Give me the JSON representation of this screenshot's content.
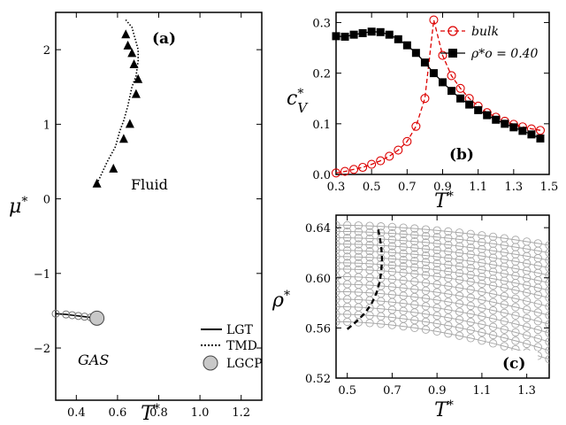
{
  "chart_data": [
    {
      "id": "a",
      "type": "line",
      "panel_label": "(a)",
      "xlabel": "T*",
      "ylabel": "μ*",
      "xlim": [
        0.3,
        1.3
      ],
      "ylim": [
        -2.7,
        2.5
      ],
      "xticks": [
        0.4,
        0.6,
        0.8,
        1.0,
        1.2
      ],
      "xtick_labels": [
        "0.4",
        "0.6",
        "0.8",
        "1.0",
        "1.2"
      ],
      "yticks": [
        -2,
        -1,
        0,
        1,
        2
      ],
      "ytick_labels": [
        "−2",
        "−1",
        "0",
        "1",
        "2"
      ],
      "annotations": {
        "fluid": "Fluid",
        "gas": "GAS"
      },
      "legend": {
        "position": "lower-right",
        "entries": [
          "LGT",
          "TMD",
          "LGCP"
        ]
      },
      "series": [
        {
          "name": "LGT",
          "style": "solid-line-open-circles",
          "x": [
            0.3,
            0.35,
            0.38,
            0.41,
            0.44,
            0.47,
            0.5
          ],
          "y": [
            -1.54,
            -1.55,
            -1.56,
            -1.57,
            -1.58,
            -1.59,
            -1.6
          ]
        },
        {
          "name": "TMD",
          "style": "dotted-line-triangles",
          "x": [
            0.5,
            0.55,
            0.59,
            0.61,
            0.63,
            0.65,
            0.67,
            0.69,
            0.7,
            0.7,
            0.69,
            0.68,
            0.67,
            0.64
          ],
          "y": [
            0.2,
            0.5,
            0.7,
            0.9,
            1.05,
            1.25,
            1.5,
            1.65,
            1.85,
            2.0,
            2.1,
            2.2,
            2.3,
            2.4
          ]
        },
        {
          "name": "TMD-markers",
          "x": [
            0.5,
            0.58,
            0.63,
            0.66,
            0.69,
            0.7,
            0.68,
            0.67,
            0.65,
            0.64
          ],
          "y": [
            0.2,
            0.4,
            0.8,
            1.0,
            1.4,
            1.6,
            1.8,
            1.95,
            2.05,
            2.2
          ]
        },
        {
          "name": "LGCP",
          "x": [
            0.5
          ],
          "y": [
            -1.6
          ]
        }
      ]
    },
    {
      "id": "b",
      "type": "line",
      "panel_label": "(b)",
      "xlabel": "T*",
      "ylabel": "c*V",
      "xlim": [
        0.3,
        1.5
      ],
      "ylim": [
        0.0,
        0.32
      ],
      "xticks": [
        0.3,
        0.5,
        0.7,
        0.9,
        1.1,
        1.3,
        1.5
      ],
      "xtick_labels": [
        "0.3",
        "0.5",
        "0.7",
        "0.9",
        "1.1",
        "1.3",
        "1.5"
      ],
      "yticks": [
        0.0,
        0.1,
        0.2,
        0.3
      ],
      "ytick_labels": [
        "0.0",
        "0.1",
        "0.2",
        "0.3"
      ],
      "legend": {
        "position": "top-right",
        "entries": [
          "bulk",
          "ρ*o = 0.40"
        ]
      },
      "series": [
        {
          "name": "bulk",
          "color": "#dd0000",
          "style": "dashed-open-circles",
          "x": [
            0.3,
            0.35,
            0.4,
            0.45,
            0.5,
            0.55,
            0.6,
            0.65,
            0.7,
            0.75,
            0.8,
            0.85,
            0.9,
            0.95,
            1.0,
            1.05,
            1.1,
            1.15,
            1.2,
            1.25,
            1.3,
            1.35,
            1.4,
            1.45
          ],
          "y": [
            0.003,
            0.006,
            0.01,
            0.014,
            0.02,
            0.027,
            0.036,
            0.048,
            0.065,
            0.095,
            0.15,
            0.305,
            0.235,
            0.195,
            0.17,
            0.15,
            0.135,
            0.122,
            0.113,
            0.105,
            0.099,
            0.094,
            0.09,
            0.087
          ]
        },
        {
          "name": "ρ*o = 0.40",
          "color": "#000000",
          "style": "solid-filled-squares",
          "x": [
            0.3,
            0.35,
            0.4,
            0.45,
            0.5,
            0.55,
            0.6,
            0.65,
            0.7,
            0.75,
            0.8,
            0.85,
            0.9,
            0.95,
            1.0,
            1.05,
            1.1,
            1.15,
            1.2,
            1.25,
            1.3,
            1.35,
            1.4,
            1.45
          ],
          "y": [
            0.273,
            0.272,
            0.276,
            0.279,
            0.282,
            0.281,
            0.276,
            0.267,
            0.255,
            0.24,
            0.221,
            0.2,
            0.182,
            0.165,
            0.15,
            0.138,
            0.127,
            0.117,
            0.108,
            0.1,
            0.093,
            0.086,
            0.079,
            0.071
          ]
        }
      ]
    },
    {
      "id": "c",
      "type": "line",
      "panel_label": "(c)",
      "xlabel": "T*",
      "ylabel": "ρ*",
      "xlim": [
        0.45,
        1.4
      ],
      "ylim": [
        0.52,
        0.65
      ],
      "xticks": [
        0.5,
        0.7,
        0.9,
        1.1,
        1.3
      ],
      "xtick_labels": [
        "0.5",
        "0.7",
        "0.9",
        "1.1",
        "1.3"
      ],
      "yticks": [
        0.52,
        0.56,
        0.6,
        0.64
      ],
      "ytick_labels": [
        "0.52",
        "0.56",
        "0.60",
        "0.64"
      ],
      "isochore_x": [
        0.45,
        0.5,
        0.55,
        0.6,
        0.65,
        0.7,
        0.75,
        0.8,
        0.85,
        0.9,
        0.95,
        1.0,
        1.05,
        1.1,
        1.15,
        1.2,
        1.25,
        1.3,
        1.35,
        1.4
      ],
      "isochores": [
        {
          "rho0": 0.642,
          "drop": 0.016
        },
        {
          "rho0": 0.637,
          "drop": 0.017
        },
        {
          "rho0": 0.632,
          "drop": 0.018
        },
        {
          "rho0": 0.627,
          "drop": 0.019
        },
        {
          "rho0": 0.622,
          "drop": 0.02
        },
        {
          "rho0": 0.617,
          "drop": 0.021
        },
        {
          "rho0": 0.612,
          "drop": 0.022
        },
        {
          "rho0": 0.607,
          "drop": 0.023
        },
        {
          "rho0": 0.601,
          "drop": 0.024
        },
        {
          "rho0": 0.595,
          "drop": 0.025
        },
        {
          "rho0": 0.589,
          "drop": 0.026
        },
        {
          "rho0": 0.583,
          "drop": 0.027
        },
        {
          "rho0": 0.577,
          "drop": 0.028
        },
        {
          "rho0": 0.571,
          "drop": 0.029
        },
        {
          "rho0": 0.565,
          "drop": 0.03
        }
      ],
      "tmd_curve": {
        "style": "dashed-black",
        "x": [
          0.5,
          0.54,
          0.58,
          0.61,
          0.63,
          0.645,
          0.652,
          0.655,
          0.652,
          0.645,
          0.635
        ],
        "y": [
          0.559,
          0.565,
          0.572,
          0.58,
          0.588,
          0.597,
          0.606,
          0.615,
          0.624,
          0.632,
          0.641
        ]
      }
    }
  ]
}
